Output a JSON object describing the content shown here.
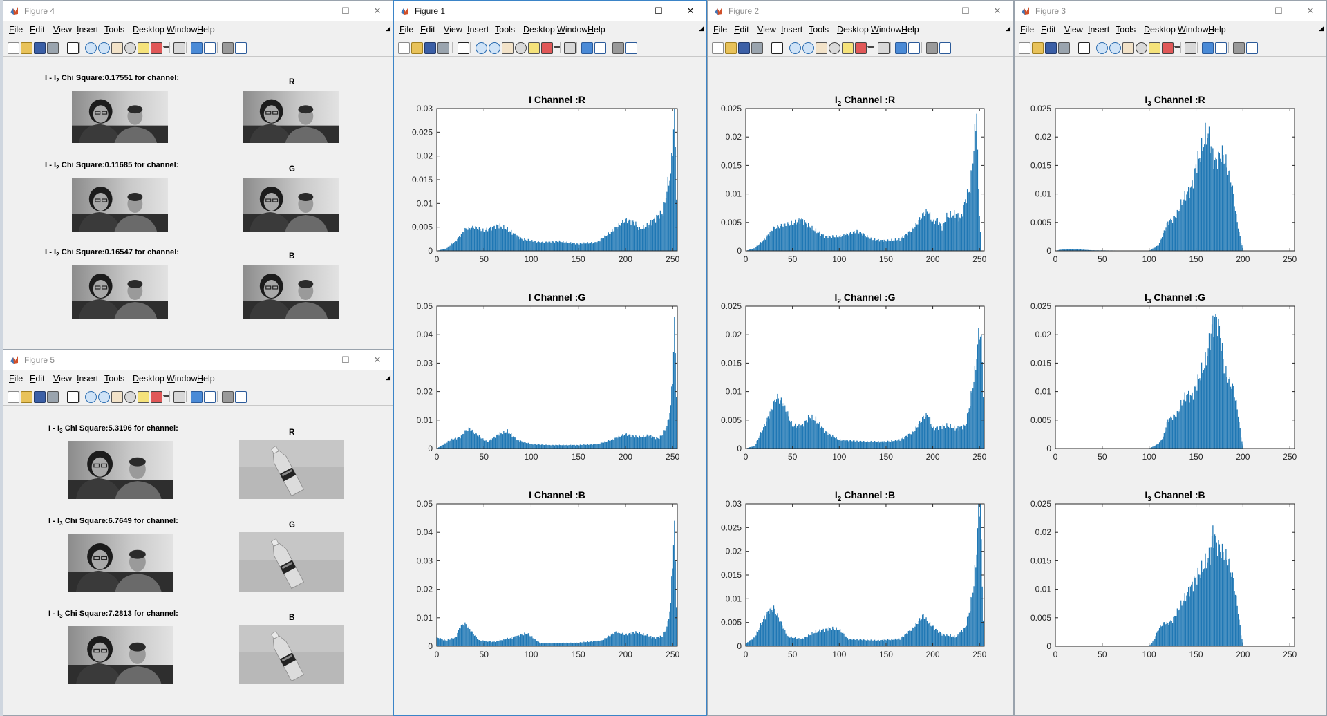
{
  "menu": [
    "File",
    "Edit",
    "View",
    "Insert",
    "Tools",
    "Desktop",
    "Window",
    "Help"
  ],
  "figure4": {
    "title": "Figure 4",
    "rows": [
      {
        "prefix": "I - I",
        "sub": "2",
        "text": " Chi Square:0.17551 for channel:",
        "channel": "R"
      },
      {
        "prefix": "I - I",
        "sub": "2",
        "text": " Chi Square:0.11685 for channel:",
        "channel": "G"
      },
      {
        "prefix": "I - I",
        "sub": "2",
        "text": " Chi Square:0.16547 for channel:",
        "channel": "B"
      }
    ]
  },
  "figure5": {
    "title": "Figure 5",
    "rows": [
      {
        "prefix": "I - I",
        "sub": "3",
        "text": " Chi Square:5.3196 for channel:",
        "channel": "R"
      },
      {
        "prefix": "I - I",
        "sub": "3",
        "text": " Chi Square:6.7649 for channel:",
        "channel": "G"
      },
      {
        "prefix": "I - I",
        "sub": "3",
        "text": " Chi Square:7.2813 for channel:",
        "channel": "B"
      }
    ]
  },
  "figure1": {
    "title": "Figure 1"
  },
  "figure2": {
    "title": "Figure 2"
  },
  "figure3": {
    "title": "Figure 3"
  },
  "colors": {
    "bar": "#1f77b4",
    "axis": "#262626"
  },
  "chart_data": [
    {
      "id": "f1r",
      "type": "bar",
      "title_main": "I",
      "title_sub": "",
      "title_rest": " Channel :R",
      "xlim": [
        0,
        255
      ],
      "ylim": [
        0,
        0.03
      ],
      "xticks": [
        0,
        50,
        100,
        150,
        200,
        250
      ],
      "yticks": [
        0,
        0.005,
        0.01,
        0.015,
        0.02,
        0.025,
        0.03
      ],
      "points": [
        [
          0,
          0
        ],
        [
          10,
          0.0005
        ],
        [
          20,
          0.002
        ],
        [
          30,
          0.0045
        ],
        [
          40,
          0.005
        ],
        [
          50,
          0.0042
        ],
        [
          60,
          0.005
        ],
        [
          65,
          0.0054
        ],
        [
          75,
          0.0045
        ],
        [
          90,
          0.0025
        ],
        [
          110,
          0.0018
        ],
        [
          130,
          0.002
        ],
        [
          150,
          0.0015
        ],
        [
          170,
          0.0018
        ],
        [
          185,
          0.004
        ],
        [
          200,
          0.0065
        ],
        [
          210,
          0.006
        ],
        [
          215,
          0.0045
        ],
        [
          225,
          0.0055
        ],
        [
          235,
          0.0075
        ],
        [
          240,
          0.008
        ],
        [
          245,
          0.014
        ],
        [
          248,
          0.016
        ],
        [
          250,
          0.022
        ],
        [
          252,
          0.03
        ],
        [
          254,
          0.012
        ],
        [
          255,
          0
        ]
      ]
    },
    {
      "id": "f1g",
      "type": "bar",
      "title_main": "I",
      "title_sub": "",
      "title_rest": " Channel :G",
      "xlim": [
        0,
        255
      ],
      "ylim": [
        0,
        0.05
      ],
      "xticks": [
        0,
        50,
        100,
        150,
        200,
        250
      ],
      "yticks": [
        0,
        0.01,
        0.02,
        0.03,
        0.04,
        0.05
      ],
      "points": [
        [
          0,
          0
        ],
        [
          5,
          0.001
        ],
        [
          15,
          0.003
        ],
        [
          25,
          0.004
        ],
        [
          30,
          0.006
        ],
        [
          35,
          0.007
        ],
        [
          40,
          0.0055
        ],
        [
          50,
          0.003
        ],
        [
          55,
          0.0025
        ],
        [
          65,
          0.005
        ],
        [
          75,
          0.006
        ],
        [
          85,
          0.003
        ],
        [
          100,
          0.0015
        ],
        [
          120,
          0.0012
        ],
        [
          150,
          0.0012
        ],
        [
          170,
          0.0015
        ],
        [
          185,
          0.003
        ],
        [
          200,
          0.005
        ],
        [
          215,
          0.004
        ],
        [
          225,
          0.0045
        ],
        [
          235,
          0.0035
        ],
        [
          240,
          0.005
        ],
        [
          245,
          0.009
        ],
        [
          248,
          0.015
        ],
        [
          250,
          0.025
        ],
        [
          252,
          0.044
        ],
        [
          254,
          0.02
        ],
        [
          255,
          0
        ]
      ]
    },
    {
      "id": "f1b",
      "type": "bar",
      "title_main": "I",
      "title_sub": "",
      "title_rest": " Channel :B",
      "xlim": [
        0,
        255
      ],
      "ylim": [
        0,
        0.05
      ],
      "xticks": [
        0,
        50,
        100,
        150,
        200,
        250
      ],
      "yticks": [
        0,
        0.01,
        0.02,
        0.03,
        0.04,
        0.05
      ],
      "points": [
        [
          0,
          0.003
        ],
        [
          10,
          0.002
        ],
        [
          20,
          0.003
        ],
        [
          25,
          0.007
        ],
        [
          30,
          0.0078
        ],
        [
          35,
          0.006
        ],
        [
          45,
          0.002
        ],
        [
          60,
          0.0015
        ],
        [
          80,
          0.003
        ],
        [
          95,
          0.0045
        ],
        [
          100,
          0.0035
        ],
        [
          110,
          0.001
        ],
        [
          150,
          0.0012
        ],
        [
          175,
          0.002
        ],
        [
          190,
          0.005
        ],
        [
          200,
          0.004
        ],
        [
          210,
          0.005
        ],
        [
          220,
          0.004
        ],
        [
          230,
          0.003
        ],
        [
          240,
          0.0035
        ],
        [
          245,
          0.008
        ],
        [
          248,
          0.015
        ],
        [
          250,
          0.03
        ],
        [
          252,
          0.042
        ],
        [
          254,
          0.015
        ],
        [
          255,
          0
        ]
      ]
    },
    {
      "id": "f2r",
      "type": "bar",
      "title_main": "I",
      "title_sub": "2",
      "title_rest": " Channel :R",
      "xlim": [
        0,
        255
      ],
      "ylim": [
        0,
        0.025
      ],
      "xticks": [
        0,
        50,
        100,
        150,
        200,
        250
      ],
      "yticks": [
        0,
        0.005,
        0.01,
        0.015,
        0.02,
        0.025
      ],
      "points": [
        [
          0,
          0
        ],
        [
          10,
          0.0005
        ],
        [
          20,
          0.002
        ],
        [
          30,
          0.004
        ],
        [
          40,
          0.0045
        ],
        [
          50,
          0.0048
        ],
        [
          60,
          0.0055
        ],
        [
          70,
          0.004
        ],
        [
          85,
          0.0025
        ],
        [
          100,
          0.0025
        ],
        [
          120,
          0.0035
        ],
        [
          135,
          0.002
        ],
        [
          150,
          0.0018
        ],
        [
          165,
          0.002
        ],
        [
          180,
          0.004
        ],
        [
          190,
          0.0065
        ],
        [
          195,
          0.007
        ],
        [
          200,
          0.005
        ],
        [
          205,
          0.0055
        ],
        [
          210,
          0.004
        ],
        [
          215,
          0.006
        ],
        [
          225,
          0.0065
        ],
        [
          230,
          0.0055
        ],
        [
          235,
          0.009
        ],
        [
          240,
          0.011
        ],
        [
          243,
          0.016
        ],
        [
          245,
          0.02
        ],
        [
          247,
          0.025
        ],
        [
          249,
          0.01
        ],
        [
          252,
          0
        ],
        [
          255,
          0
        ]
      ]
    },
    {
      "id": "f2g",
      "type": "bar",
      "title_main": "I",
      "title_sub": "2",
      "title_rest": " Channel :G",
      "xlim": [
        0,
        255
      ],
      "ylim": [
        0,
        0.025
      ],
      "xticks": [
        0,
        50,
        100,
        150,
        200,
        250
      ],
      "yticks": [
        0,
        0.005,
        0.01,
        0.015,
        0.02,
        0.025
      ],
      "points": [
        [
          0,
          0
        ],
        [
          10,
          0.0005
        ],
        [
          20,
          0.004
        ],
        [
          28,
          0.007
        ],
        [
          33,
          0.009
        ],
        [
          40,
          0.008
        ],
        [
          50,
          0.004
        ],
        [
          60,
          0.004
        ],
        [
          68,
          0.0055
        ],
        [
          75,
          0.005
        ],
        [
          85,
          0.003
        ],
        [
          100,
          0.0015
        ],
        [
          130,
          0.0012
        ],
        [
          150,
          0.0012
        ],
        [
          165,
          0.0015
        ],
        [
          180,
          0.003
        ],
        [
          190,
          0.0055
        ],
        [
          195,
          0.006
        ],
        [
          200,
          0.0035
        ],
        [
          215,
          0.004
        ],
        [
          225,
          0.0035
        ],
        [
          235,
          0.004
        ],
        [
          240,
          0.008
        ],
        [
          245,
          0.013
        ],
        [
          248,
          0.018
        ],
        [
          250,
          0.021
        ],
        [
          252,
          0.019
        ],
        [
          254,
          0.01
        ],
        [
          255,
          0
        ]
      ]
    },
    {
      "id": "f2b",
      "type": "bar",
      "title_main": "I",
      "title_sub": "2",
      "title_rest": " Channel :B",
      "xlim": [
        0,
        255
      ],
      "ylim": [
        0,
        0.03
      ],
      "xticks": [
        0,
        50,
        100,
        150,
        200,
        250
      ],
      "yticks": [
        0,
        0.005,
        0.01,
        0.015,
        0.02,
        0.025,
        0.03
      ],
      "points": [
        [
          0,
          0.0005
        ],
        [
          10,
          0.002
        ],
        [
          20,
          0.006
        ],
        [
          25,
          0.0075
        ],
        [
          30,
          0.008
        ],
        [
          35,
          0.006
        ],
        [
          45,
          0.002
        ],
        [
          60,
          0.0015
        ],
        [
          75,
          0.003
        ],
        [
          90,
          0.0038
        ],
        [
          100,
          0.0035
        ],
        [
          110,
          0.0015
        ],
        [
          140,
          0.0012
        ],
        [
          165,
          0.0015
        ],
        [
          180,
          0.004
        ],
        [
          190,
          0.0065
        ],
        [
          195,
          0.005
        ],
        [
          210,
          0.0025
        ],
        [
          225,
          0.002
        ],
        [
          235,
          0.004
        ],
        [
          240,
          0.008
        ],
        [
          244,
          0.013
        ],
        [
          247,
          0.02
        ],
        [
          249,
          0.029
        ],
        [
          251,
          0.031
        ],
        [
          253,
          0.012
        ],
        [
          255,
          0
        ]
      ]
    },
    {
      "id": "f3r",
      "type": "bar",
      "title_main": "I",
      "title_sub": "3",
      "title_rest": " Channel :R",
      "xlim": [
        0,
        255
      ],
      "ylim": [
        0,
        0.025
      ],
      "xticks": [
        0,
        50,
        100,
        150,
        200,
        250
      ],
      "yticks": [
        0,
        0.005,
        0.01,
        0.015,
        0.02,
        0.025
      ],
      "points": [
        [
          0,
          0
        ],
        [
          5,
          0.0002
        ],
        [
          20,
          0.0003
        ],
        [
          40,
          0.0001
        ],
        [
          100,
          0
        ],
        [
          110,
          0.001
        ],
        [
          115,
          0.003
        ],
        [
          120,
          0.005
        ],
        [
          125,
          0.0055
        ],
        [
          130,
          0.0065
        ],
        [
          135,
          0.0085
        ],
        [
          140,
          0.01
        ],
        [
          145,
          0.011
        ],
        [
          150,
          0.015
        ],
        [
          155,
          0.017
        ],
        [
          160,
          0.02
        ],
        [
          163,
          0.0205
        ],
        [
          168,
          0.017
        ],
        [
          170,
          0.0155
        ],
        [
          175,
          0.0165
        ],
        [
          178,
          0.017
        ],
        [
          182,
          0.0155
        ],
        [
          188,
          0.012
        ],
        [
          193,
          0.006
        ],
        [
          198,
          0.0015
        ],
        [
          201,
          0
        ],
        [
          255,
          0
        ]
      ]
    },
    {
      "id": "f3g",
      "type": "bar",
      "title_main": "I",
      "title_sub": "3",
      "title_rest": " Channel :G",
      "xlim": [
        0,
        255
      ],
      "ylim": [
        0,
        0.025
      ],
      "xticks": [
        0,
        50,
        100,
        150,
        200,
        250
      ],
      "yticks": [
        0,
        0.005,
        0.01,
        0.015,
        0.02,
        0.025
      ],
      "points": [
        [
          0,
          0
        ],
        [
          100,
          0
        ],
        [
          110,
          0.0008
        ],
        [
          115,
          0.002
        ],
        [
          120,
          0.005
        ],
        [
          125,
          0.0055
        ],
        [
          130,
          0.006
        ],
        [
          135,
          0.008
        ],
        [
          140,
          0.0095
        ],
        [
          145,
          0.009
        ],
        [
          150,
          0.011
        ],
        [
          155,
          0.013
        ],
        [
          160,
          0.015
        ],
        [
          163,
          0.0175
        ],
        [
          168,
          0.022
        ],
        [
          172,
          0.0228
        ],
        [
          176,
          0.02
        ],
        [
          180,
          0.014
        ],
        [
          185,
          0.012
        ],
        [
          190,
          0.0105
        ],
        [
          195,
          0.006
        ],
        [
          198,
          0.002
        ],
        [
          201,
          0
        ],
        [
          255,
          0
        ]
      ]
    },
    {
      "id": "f3b",
      "type": "bar",
      "title_main": "I",
      "title_sub": "3",
      "title_rest": " Channel :B",
      "xlim": [
        0,
        255
      ],
      "ylim": [
        0,
        0.025
      ],
      "xticks": [
        0,
        50,
        100,
        150,
        200,
        250
      ],
      "yticks": [
        0,
        0.005,
        0.01,
        0.015,
        0.02,
        0.025
      ],
      "points": [
        [
          0,
          0
        ],
        [
          100,
          0
        ],
        [
          105,
          0.001
        ],
        [
          110,
          0.003
        ],
        [
          115,
          0.004
        ],
        [
          120,
          0.004
        ],
        [
          125,
          0.0045
        ],
        [
          130,
          0.006
        ],
        [
          135,
          0.0075
        ],
        [
          140,
          0.009
        ],
        [
          145,
          0.0105
        ],
        [
          150,
          0.012
        ],
        [
          155,
          0.013
        ],
        [
          160,
          0.0145
        ],
        [
          165,
          0.016
        ],
        [
          168,
          0.02
        ],
        [
          172,
          0.018
        ],
        [
          178,
          0.0165
        ],
        [
          185,
          0.015
        ],
        [
          190,
          0.0115
        ],
        [
          195,
          0.006
        ],
        [
          198,
          0.002
        ],
        [
          201,
          0
        ],
        [
          255,
          0
        ]
      ]
    }
  ]
}
